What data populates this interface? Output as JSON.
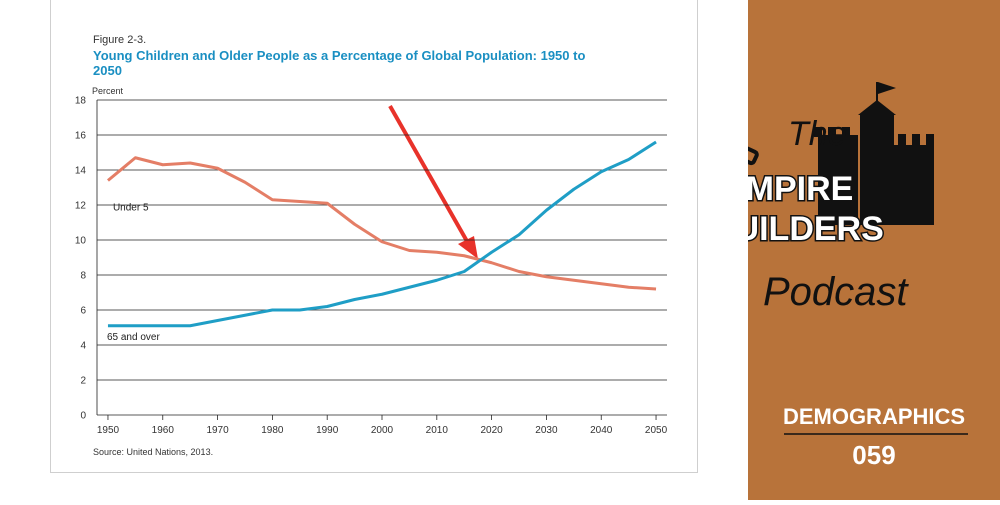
{
  "chart_data": {
    "type": "line",
    "figure_label": "Figure 2-3.",
    "title": "Young Children and Older People as a Percentage of Global Population: 1950 to 2050",
    "y_axis_label": "Percent",
    "source": "Source: United Nations, 2013.",
    "x": [
      1950,
      1955,
      1960,
      1965,
      1970,
      1975,
      1980,
      1985,
      1990,
      1995,
      2000,
      2005,
      2010,
      2015,
      2020,
      2025,
      2030,
      2035,
      2040,
      2045,
      2050
    ],
    "series": [
      {
        "name": "Under 5",
        "color": "#e47e66",
        "values": [
          13.4,
          14.7,
          14.3,
          14.4,
          14.1,
          13.3,
          12.3,
          12.2,
          12.1,
          10.9,
          9.9,
          9.4,
          9.3,
          9.1,
          8.7,
          8.2,
          7.9,
          7.7,
          7.5,
          7.3,
          7.2
        ]
      },
      {
        "name": "65 and over",
        "color": "#1f9ec6",
        "values": [
          5.1,
          5.1,
          5.1,
          5.1,
          5.4,
          5.7,
          6.0,
          6.0,
          6.2,
          6.6,
          6.9,
          7.3,
          7.7,
          8.2,
          9.3,
          10.3,
          11.7,
          12.9,
          13.9,
          14.6,
          15.6
        ]
      }
    ],
    "xlim": [
      1948,
      2052
    ],
    "xticks": [
      1950,
      1960,
      1970,
      1980,
      1990,
      2000,
      2010,
      2020,
      2030,
      2040,
      2050
    ],
    "ylim": [
      0,
      18
    ],
    "yticks": [
      0,
      2,
      4,
      6,
      8,
      10,
      12,
      14,
      16,
      18
    ],
    "grid": true
  },
  "branding": {
    "the": "The",
    "line1": "EMPIRE",
    "line2": "BUILDERS",
    "podcast": "Podcast",
    "episode_topic": "DEMOGRAPHICS",
    "episode_number": "059"
  }
}
